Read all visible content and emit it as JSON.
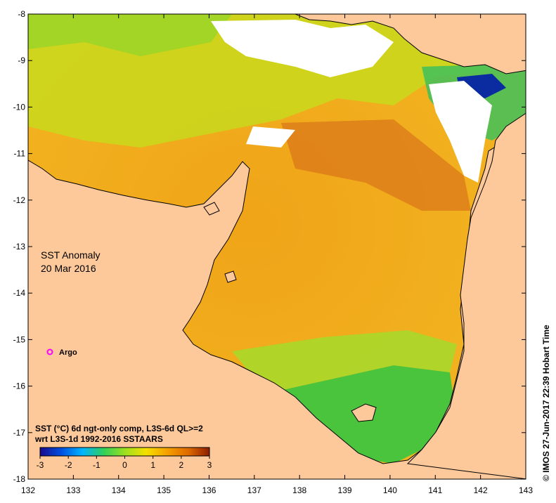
{
  "map": {
    "title": "SST Anomaly",
    "date": "20 Mar 2016",
    "product_line1": "SST (°C) 6d ngt-only comp, L3S-6d QL>=2",
    "product_line2": "wrt L3S-1d 1992-2016 SSTAARS",
    "credit": "© IMOS 27-Jun-2017 22:39 Hobart Time",
    "argo_label": "Argo",
    "lon_range": [
      132,
      143
    ],
    "lat_range": [
      -18,
      -8
    ],
    "x_ticks": [
      "132",
      "133",
      "134",
      "135",
      "136",
      "137",
      "138",
      "139",
      "140",
      "141",
      "142",
      "143"
    ],
    "y_ticks": [
      "-8",
      "-9",
      "-10",
      "-11",
      "-12",
      "-13",
      "-14",
      "-15",
      "-16",
      "-17",
      "-18"
    ],
    "land_color": "#fdc89a",
    "argo_color": "#ff00ff"
  },
  "colorbar": {
    "ticks": [
      "-3",
      "-2",
      "-1",
      "0",
      "1",
      "2",
      "3"
    ],
    "stops": [
      "#1a0a8c",
      "#0050e0",
      "#00b4ff",
      "#2fcf5a",
      "#9be01e",
      "#f5e000",
      "#f5a000",
      "#e06a00",
      "#8c1e00"
    ]
  }
}
